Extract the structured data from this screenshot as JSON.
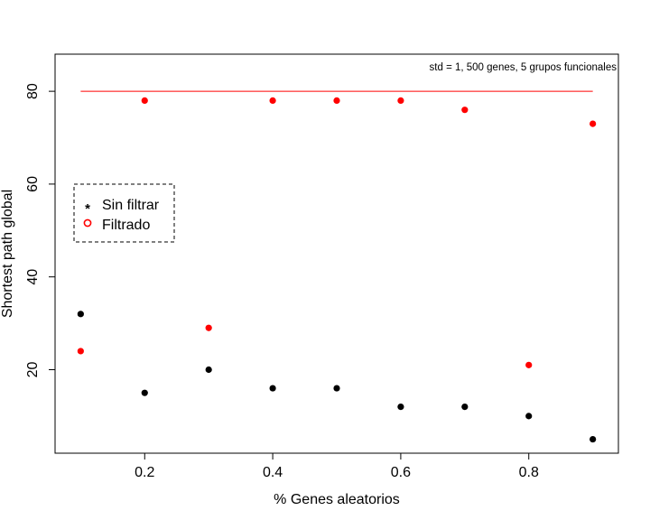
{
  "chart_data": {
    "type": "scatter",
    "title": "",
    "annotation": "std = 1, 500 genes, 5 grupos funcionales",
    "xlabel": "% Genes aleatorios",
    "ylabel": "Shortest path global",
    "xlim": [
      0.06,
      0.94
    ],
    "ylim": [
      2,
      88
    ],
    "xticks": [
      0.2,
      0.4,
      0.6,
      0.8
    ],
    "xtick_labels": [
      "0.2",
      "0.4",
      "0.6",
      "0.8"
    ],
    "yticks": [
      20,
      40,
      60,
      80
    ],
    "ytick_labels": [
      "20",
      "40",
      "60",
      "80"
    ],
    "grid": false,
    "legend_position": "left",
    "series": [
      {
        "name": "Sin filtrar",
        "marker": "*",
        "color": "#000000",
        "x": [
          0.1,
          0.2,
          0.3,
          0.4,
          0.5,
          0.6,
          0.7,
          0.8,
          0.9
        ],
        "y": [
          32,
          15,
          20,
          16,
          16,
          12,
          12,
          10,
          5
        ]
      },
      {
        "name": "Filtrado",
        "marker": "o",
        "color": "#ff0000",
        "x": [
          0.1,
          0.2,
          0.3,
          0.4,
          0.5,
          0.6,
          0.7,
          0.8,
          0.9
        ],
        "y": [
          24,
          78,
          29,
          78,
          78,
          78,
          76,
          21,
          73
        ]
      }
    ],
    "reference_line": {
      "y": 80,
      "x": [
        0.1,
        0.9
      ],
      "color": "#ff0000"
    }
  }
}
